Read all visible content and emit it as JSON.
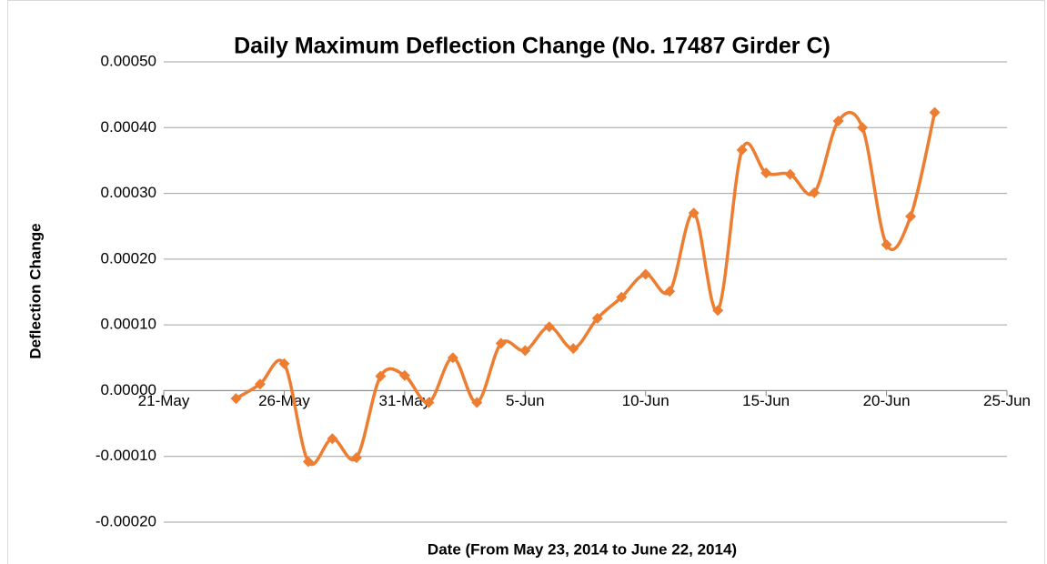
{
  "chart_data": {
    "type": "line",
    "title": "Daily Maximum Deflection Change  (No. 17487 Girder C)",
    "x_label": "Date (From May 23, 2014 to June 22, 2014)",
    "y_label": "Deflection Change",
    "x": [
      "24-May",
      "25-May",
      "26-May",
      "27-May",
      "28-May",
      "29-May",
      "30-May",
      "31-May",
      "1-Jun",
      "2-Jun",
      "3-Jun",
      "4-Jun",
      "5-Jun",
      "6-Jun",
      "7-Jun",
      "8-Jun",
      "9-Jun",
      "10-Jun",
      "11-Jun",
      "12-Jun",
      "13-Jun",
      "14-Jun",
      "15-Jun",
      "16-Jun",
      "17-Jun",
      "18-Jun",
      "19-Jun",
      "20-Jun",
      "21-Jun",
      "22-Jun"
    ],
    "series": [
      {
        "name": "Deflection Change",
        "color": "#ed7d31",
        "values": [
          -1.2e-05,
          1e-05,
          4.1e-05,
          -0.000108,
          -7.3e-05,
          -0.000102,
          2.2e-05,
          2.3e-05,
          -1.8e-05,
          5e-05,
          -1.8e-05,
          7.2e-05,
          6.1e-05,
          9.7e-05,
          6.4e-05,
          0.00011,
          0.000142,
          0.000177,
          0.000151,
          0.00027,
          0.000122,
          0.000366,
          0.000331,
          0.000329,
          0.000301,
          0.00041,
          0.0004,
          0.000222,
          0.000265,
          0.000423
        ]
      }
    ],
    "xlim": [
      "21-May",
      "25-Jun"
    ],
    "xticks": [
      "21-May",
      "26-May",
      "31-May",
      "5-Jun",
      "10-Jun",
      "15-Jun",
      "20-Jun",
      "25-Jun"
    ],
    "ylim": [
      -0.0002,
      0.0005
    ],
    "yticks": [
      {
        "value": -0.0002,
        "label": "-0.00020"
      },
      {
        "value": -0.0001,
        "label": "-0.00010"
      },
      {
        "value": 0,
        "label": "0.00000"
      },
      {
        "value": 0.0001,
        "label": "0.00010"
      },
      {
        "value": 0.0002,
        "label": "0.00020"
      },
      {
        "value": 0.0003,
        "label": "0.00030"
      },
      {
        "value": 0.0004,
        "label": "0.00040"
      },
      {
        "value": 0.0005,
        "label": "0.00050"
      }
    ],
    "grid": true,
    "smooth": true
  }
}
